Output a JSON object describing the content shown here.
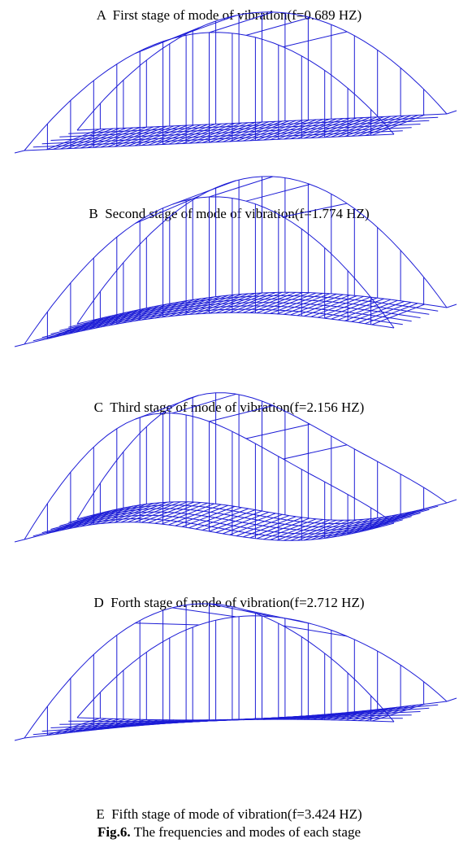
{
  "panels": [
    {
      "caption": "A  First stage of mode of vibration(f=0.689 HZ)"
    },
    {
      "caption": "B  Second stage of mode of vibration(f=1.774 HZ)"
    },
    {
      "caption": "C  Third stage of mode of vibration(f=2.156 HZ)"
    },
    {
      "caption": "D  Forth stage of mode of vibration(f=2.712 HZ)"
    },
    {
      "caption": "E  Fifth stage of mode of vibration(f=3.424 HZ)"
    }
  ],
  "figure_caption": {
    "label": "Fig.6.",
    "text": "The frequencies and modes of each stage"
  }
}
